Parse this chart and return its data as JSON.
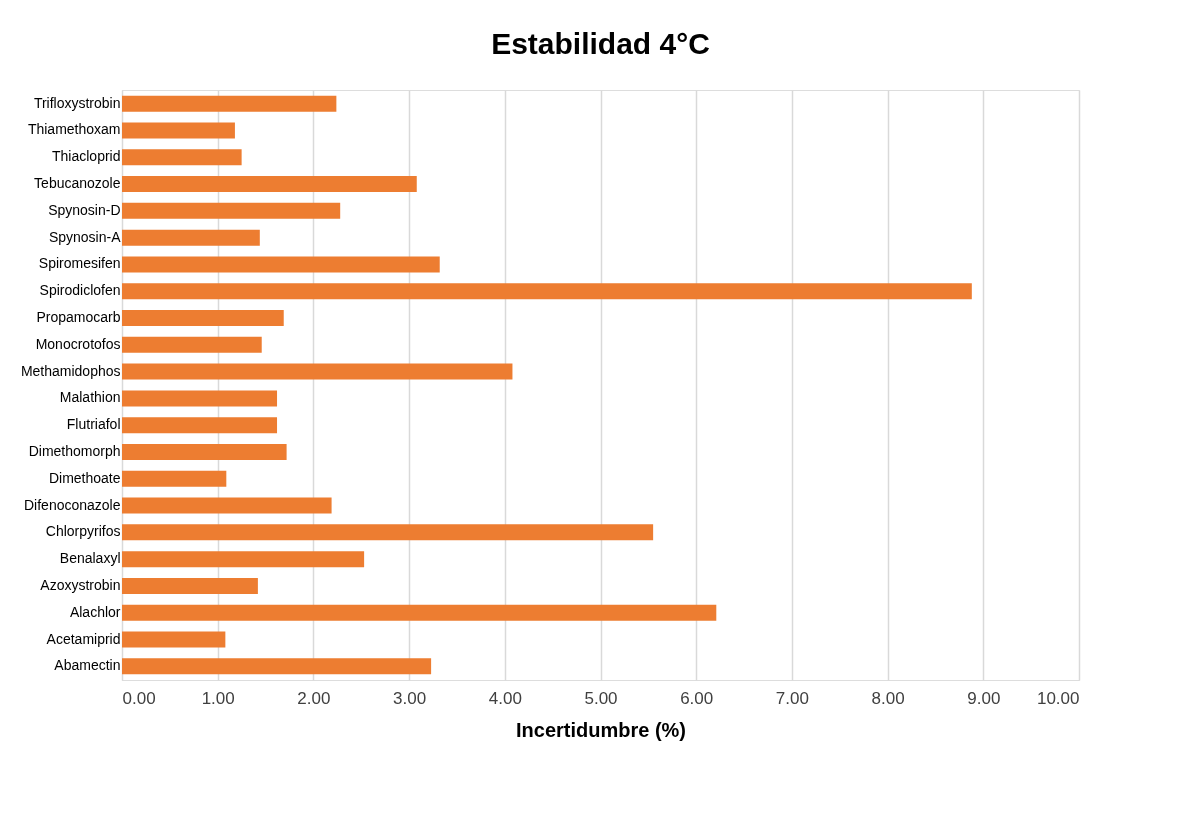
{
  "chart_data": {
    "type": "bar",
    "orientation": "horizontal",
    "title": "Estabilidad 4°C",
    "xlabel": "Incertidumbre (%)",
    "categories": [
      "Trifloxystrobin",
      "Thiamethoxam",
      "Thiacloprid",
      "Tebucanozole",
      "Spynosin-D",
      "Spynosin-A",
      "Spiromesifen",
      "Spirodiclofen",
      "Propamocarb",
      "Monocrotofos",
      "Methamidophos",
      "Malathion",
      "Flutriafol",
      "Dimethomorph",
      "Dimethoate",
      "Difenoconazole",
      "Chlorpyrifos",
      "Benalaxyl",
      "Azoxystrobin",
      "Alachlor",
      "Acetamiprid",
      "Abamectin"
    ],
    "values": [
      2.24,
      1.18,
      1.25,
      3.08,
      2.28,
      1.44,
      3.32,
      8.88,
      1.69,
      1.46,
      4.08,
      1.62,
      1.62,
      1.72,
      1.09,
      2.19,
      5.55,
      2.53,
      1.42,
      6.21,
      1.08,
      3.23
    ],
    "color": "#ed7d31",
    "xlim": [
      0,
      10
    ],
    "xticks": [
      {
        "value": 0,
        "label": "0.00"
      },
      {
        "value": 1,
        "label": "1.00"
      },
      {
        "value": 2,
        "label": "2.00"
      },
      {
        "value": 3,
        "label": "3.00"
      },
      {
        "value": 4,
        "label": "4.00"
      },
      {
        "value": 5,
        "label": "5.00"
      },
      {
        "value": 6,
        "label": "6.00"
      },
      {
        "value": 7,
        "label": "7.00"
      },
      {
        "value": 8,
        "label": "8.00"
      },
      {
        "value": 9,
        "label": "9.00"
      },
      {
        "value": 10,
        "label": "10.00"
      }
    ],
    "grid": "x"
  }
}
